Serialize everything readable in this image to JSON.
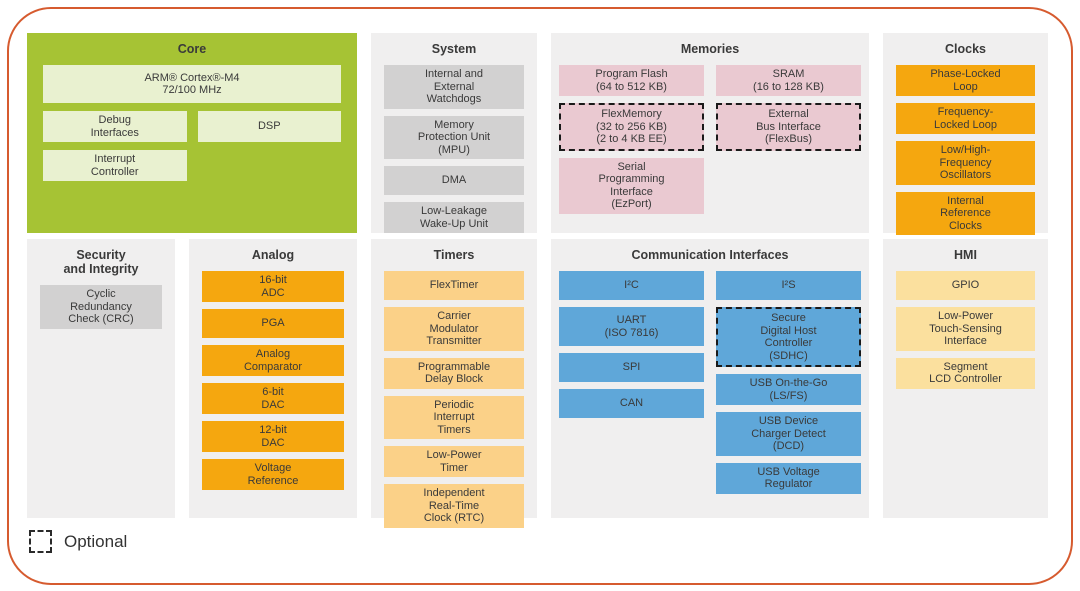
{
  "legend": {
    "label": "Optional"
  },
  "colors": {
    "border": "#d65b2f",
    "panel_bg": "#f0efef",
    "core_bg": "#a6c334",
    "core_block": "#e9f1d0",
    "gray_block": "#d2d1d1",
    "pink_block": "#eac9d1",
    "orange_block": "#f5a70f",
    "peach_block": "#fbd188",
    "yellow_block": "#fbe09e",
    "blue_block": "#5fa7d9",
    "text": "#3d3d3d"
  },
  "diagram": {
    "core": {
      "title": "Core",
      "blocks": {
        "arm": "ARM® Cortex®-M4\n72/100 MHz",
        "debug": "Debug\nInterfaces",
        "dsp": "DSP",
        "interrupt": "Interrupt\nController"
      }
    },
    "system": {
      "title": "System",
      "blocks": {
        "watchdogs": "Internal and\nExternal\nWatchdogs",
        "mpu": "Memory\nProtection Unit\n(MPU)",
        "dma": "DMA",
        "llwu": "Low-Leakage\nWake-Up Unit"
      }
    },
    "memories": {
      "title": "Memories",
      "blocks": {
        "program_flash": "Program Flash\n(64 to 512 KB)",
        "sram": "SRAM\n(16 to 128 KB)",
        "flexmemory": "FlexMemory\n(32 to 256 KB)\n(2 to 4 KB EE)",
        "ebi": "External\nBus Interface\n(FlexBus)",
        "ezport": "Serial\nProgramming\nInterface\n(EzPort)"
      }
    },
    "clocks": {
      "title": "Clocks",
      "blocks": {
        "pll": "Phase-Locked\nLoop",
        "fll": "Frequency-\nLocked Loop",
        "osc": "Low/High-\nFrequency\nOscillators",
        "irc": "Internal\nReference\nClocks"
      }
    },
    "security": {
      "title": "Security\nand Integrity",
      "blocks": {
        "crc": "Cyclic\nRedundancy\nCheck (CRC)"
      }
    },
    "analog": {
      "title": "Analog",
      "blocks": {
        "adc": "16-bit\nADC",
        "pga": "PGA",
        "cmp": "Analog\nComparator",
        "dac6": "6-bit\nDAC",
        "dac12": "12-bit\nDAC",
        "vref": "Voltage\nReference"
      }
    },
    "timers": {
      "title": "Timers",
      "blocks": {
        "flextimer": "FlexTimer",
        "cmt": "Carrier\nModulator\nTransmitter",
        "pdb": "Programmable\nDelay Block",
        "pit": "Periodic\nInterrupt\nTimers",
        "lptmr": "Low-Power\nTimer",
        "rtc": "Independent\nReal-Time\nClock (RTC)"
      }
    },
    "comm": {
      "title": "Communication Interfaces",
      "blocks": {
        "i2c": "I²C",
        "uart": "UART\n(ISO 7816)",
        "spi": "SPI",
        "can": "CAN",
        "i2s": "I²S",
        "sdhc": "Secure\nDigital Host\nController\n(SDHC)",
        "usb_otg": "USB On-the-Go\n(LS/FS)",
        "usb_dcd": "USB Device\nCharger Detect\n(DCD)",
        "usb_vreg": "USB Voltage\nRegulator"
      }
    },
    "hmi": {
      "title": "HMI",
      "blocks": {
        "gpio": "GPIO",
        "tsi": "Low-Power\nTouch-Sensing\nInterface",
        "slcd": "Segment\nLCD Controller"
      }
    }
  }
}
